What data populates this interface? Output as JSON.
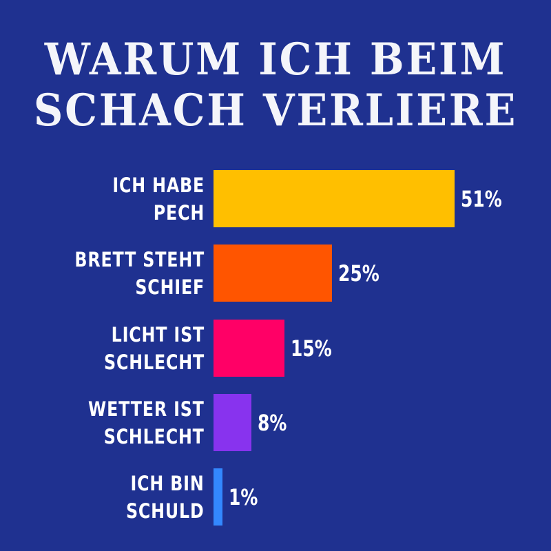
{
  "title": {
    "line1": "WARUM ICH BEIM",
    "line2": "SCHACH VERLIERE"
  },
  "colors": {
    "background": "#1f3190",
    "text": "#ffffff"
  },
  "bars": [
    {
      "line1": "ICH HABE",
      "line2": "PECH",
      "value": 51,
      "value_label": "51%",
      "color": "#ffbf00"
    },
    {
      "line1": "BRETT STEHT",
      "line2": "SCHIEF",
      "value": 25,
      "value_label": "25%",
      "color": "#ff5500"
    },
    {
      "line1": "LICHT IST",
      "line2": "SCHLECHT",
      "value": 15,
      "value_label": "15%",
      "color": "#ff0066"
    },
    {
      "line1": "WETTER IST",
      "line2": "SCHLECHT",
      "value": 8,
      "value_label": "8%",
      "color": "#8833ee"
    },
    {
      "line1": "ICH BIN",
      "line2": "SCHULD",
      "value": 1,
      "value_label": "1%",
      "color": "#3388ff"
    }
  ],
  "chart_data": {
    "type": "bar",
    "orientation": "horizontal",
    "title": "WARUM ICH BEIM SCHACH VERLIERE",
    "categories": [
      "ICH HABE PECH",
      "BRETT STEHT SCHIEF",
      "LICHT IST SCHLECHT",
      "WETTER IST SCHLECHT",
      "ICH BIN SCHULD"
    ],
    "values": [
      51,
      25,
      15,
      8,
      1
    ],
    "unit": "%",
    "colors": [
      "#ffbf00",
      "#ff5500",
      "#ff0066",
      "#8833ee",
      "#3388ff"
    ],
    "xlabel": "",
    "ylabel": "",
    "grid": false,
    "legend": false,
    "data_labels": [
      "51%",
      "25%",
      "15%",
      "8%",
      "1%"
    ]
  }
}
